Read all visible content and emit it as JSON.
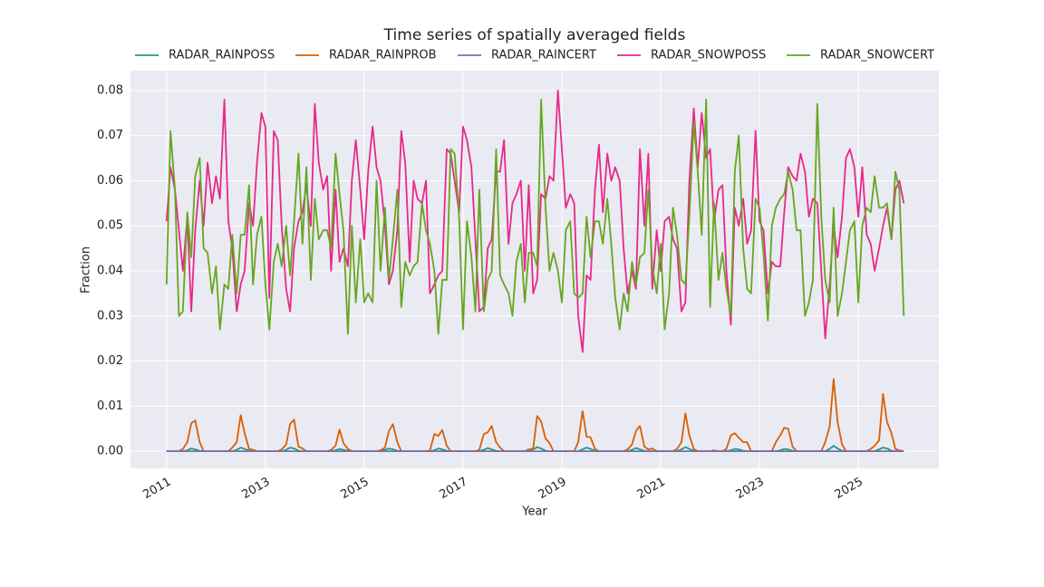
{
  "chart_data": {
    "type": "line",
    "title": "Time series of spatially averaged fields",
    "xlabel": "Year",
    "ylabel": "Fraction",
    "xlim": [
      2010.27,
      2026.63
    ],
    "ylim": [
      -0.0038,
      0.0844
    ],
    "xticks": [
      2011,
      2013,
      2015,
      2017,
      2019,
      2021,
      2023,
      2025
    ],
    "yticks": [
      {
        "value": 0,
        "label": "0.00"
      },
      {
        "value": 0.01,
        "label": "0.01"
      },
      {
        "value": 0.02,
        "label": "0.02"
      },
      {
        "value": 0.03,
        "label": "0.03"
      },
      {
        "value": 0.04,
        "label": "0.04"
      },
      {
        "value": 0.05,
        "label": "0.05"
      },
      {
        "value": 0.06,
        "label": "0.06"
      },
      {
        "value": 0.07,
        "label": "0.07"
      },
      {
        "value": 0.08,
        "label": "0.08"
      }
    ],
    "grid": true,
    "legend": "top",
    "x": [
      2011,
      2011.08,
      2011.17,
      2011.25,
      2011.33,
      2011.42,
      2011.5,
      2011.58,
      2011.67,
      2011.75,
      2011.83,
      2011.92,
      2012,
      2012.08,
      2012.17,
      2012.25,
      2012.33,
      2012.42,
      2012.5,
      2012.58,
      2012.67,
      2012.75,
      2012.83,
      2012.92,
      2013,
      2013.08,
      2013.17,
      2013.25,
      2013.33,
      2013.42,
      2013.5,
      2013.58,
      2013.67,
      2013.75,
      2013.83,
      2013.92,
      2014,
      2014.08,
      2014.17,
      2014.25,
      2014.33,
      2014.42,
      2014.5,
      2014.58,
      2014.67,
      2014.75,
      2014.83,
      2014.92,
      2015,
      2015.08,
      2015.17,
      2015.25,
      2015.33,
      2015.42,
      2015.5,
      2015.58,
      2015.67,
      2015.75,
      2015.83,
      2015.92,
      2016,
      2016.08,
      2016.17,
      2016.25,
      2016.33,
      2016.42,
      2016.5,
      2016.58,
      2016.67,
      2016.75,
      2016.83,
      2016.92,
      2017,
      2017.08,
      2017.17,
      2017.25,
      2017.33,
      2017.42,
      2017.5,
      2017.58,
      2017.67,
      2017.75,
      2017.83,
      2017.92,
      2018,
      2018.08,
      2018.17,
      2018.25,
      2018.33,
      2018.42,
      2018.5,
      2018.58,
      2018.67,
      2018.75,
      2018.83,
      2018.92,
      2019,
      2019.08,
      2019.17,
      2019.25,
      2019.33,
      2019.42,
      2019.5,
      2019.58,
      2019.67,
      2019.75,
      2019.83,
      2019.92,
      2020,
      2020.08,
      2020.17,
      2020.25,
      2020.33,
      2020.42,
      2020.5,
      2020.58,
      2020.67,
      2020.75,
      2020.83,
      2020.92,
      2021,
      2021.08,
      2021.17,
      2021.25,
      2021.33,
      2021.42,
      2021.5,
      2021.58,
      2021.67,
      2021.75,
      2021.83,
      2021.92,
      2022,
      2022.08,
      2022.17,
      2022.25,
      2022.33,
      2022.42,
      2022.5,
      2022.58,
      2022.67,
      2022.75,
      2022.83,
      2022.92,
      2023,
      2023.08,
      2023.17,
      2023.25,
      2023.33,
      2023.42,
      2023.5,
      2023.58,
      2023.67,
      2023.75,
      2023.83,
      2023.92,
      2024,
      2024.08,
      2024.17,
      2024.25,
      2024.33,
      2024.42,
      2024.5,
      2024.58,
      2024.67,
      2024.75,
      2024.83,
      2024.92,
      2025,
      2025.08,
      2025.17,
      2025.25,
      2025.33,
      2025.42,
      2025.5,
      2025.58,
      2025.67,
      2025.75,
      2025.83,
      2025.92
    ],
    "series": [
      {
        "name": "RADAR_RAINPOSS",
        "color": "#1b9e77",
        "values": [
          0,
          0,
          0,
          0,
          0,
          0.0002,
          0.0006,
          0.0004,
          0.0001,
          0,
          0,
          0,
          0,
          0,
          0,
          0,
          0,
          0.0003,
          0.0008,
          0.0005,
          0.0001,
          0,
          0,
          0,
          0,
          0,
          0,
          0,
          0,
          0.0003,
          0.0008,
          0.0006,
          0.0001,
          0,
          0,
          0,
          0,
          0,
          0,
          0,
          0,
          0.0002,
          0.0005,
          0.0003,
          0.0001,
          0,
          0,
          0,
          0,
          0,
          0,
          0,
          0,
          0.0003,
          0.0006,
          0.0004,
          0.0001,
          0,
          0,
          0,
          0,
          0,
          0,
          0,
          0,
          0.0002,
          0.0006,
          0.0004,
          0.0001,
          0,
          0,
          0,
          0,
          0,
          0,
          0,
          0,
          0.0003,
          0.0007,
          0.0004,
          0.0001,
          0,
          0,
          0,
          0,
          0,
          0,
          0,
          0,
          0.0004,
          0.0009,
          0.0006,
          0.0001,
          0,
          0,
          0,
          0,
          0,
          0,
          0,
          0,
          0.0004,
          0.0008,
          0.0005,
          0.0001,
          0,
          0,
          0,
          0,
          0,
          0,
          0,
          0,
          0.0003,
          0.0007,
          0.0004,
          0.0001,
          0,
          0,
          0,
          0,
          0,
          0,
          0,
          0,
          0.0004,
          0.0009,
          0.0005,
          0.0001,
          0,
          0,
          0,
          0,
          0,
          0,
          0,
          0,
          0.0002,
          0.0005,
          0.0004,
          0.0001,
          0,
          0,
          0,
          0,
          0,
          0,
          0,
          0,
          0.0002,
          0.0005,
          0.0004,
          0.0001,
          0,
          0,
          0,
          0,
          0,
          0,
          0,
          0,
          0.0005,
          0.0012,
          0.0006,
          0.0001,
          0,
          0,
          0,
          0,
          0,
          0,
          0,
          0,
          0.0004,
          0.0008,
          0.0006,
          0.0001,
          0,
          0,
          0
        ]
      },
      {
        "name": "RADAR_RAINPROB",
        "color": "#d95f02",
        "values": [
          0,
          0,
          0,
          0,
          0.0005,
          0.002,
          0.0062,
          0.0068,
          0.002,
          0,
          0,
          0,
          0,
          0,
          0,
          0,
          0.0008,
          0.002,
          0.008,
          0.004,
          0.0005,
          0.0003,
          0,
          0,
          0,
          0,
          0,
          0,
          0.0004,
          0.0015,
          0.006,
          0.007,
          0.001,
          0.0006,
          0,
          0,
          0,
          0,
          0,
          0,
          0.0003,
          0.0012,
          0.0048,
          0.0018,
          0.0005,
          0,
          0,
          0,
          0,
          0,
          0,
          0,
          0.0002,
          0.0008,
          0.0045,
          0.006,
          0.002,
          0,
          0,
          0,
          0,
          0,
          0,
          0,
          0.0002,
          0.0038,
          0.0034,
          0.0047,
          0.0012,
          0,
          0,
          0,
          0,
          0,
          0,
          0,
          0.0003,
          0.0038,
          0.0042,
          0.0056,
          0.002,
          0.0008,
          0,
          0,
          0,
          0,
          0,
          0,
          0.0004,
          0.0006,
          0.0078,
          0.0066,
          0.0028,
          0.0018,
          0,
          0,
          0,
          0,
          0,
          0,
          0.002,
          0.0089,
          0.0032,
          0.0031,
          0.0005,
          0,
          0,
          0,
          0,
          0,
          0,
          0,
          0.0004,
          0.0015,
          0.0045,
          0.0056,
          0.001,
          0.0004,
          0.0006,
          0,
          0,
          0,
          0,
          0,
          0.0005,
          0.002,
          0.0084,
          0.0035,
          0.0005,
          0,
          0,
          0,
          0,
          0.0002,
          0,
          0,
          0.0005,
          0.0035,
          0.004,
          0.003,
          0.002,
          0.002,
          0,
          0,
          0,
          0,
          0,
          0,
          0.002,
          0.0035,
          0.0052,
          0.005,
          0.001,
          0,
          0,
          0,
          0,
          0,
          0,
          0,
          0.002,
          0.0055,
          0.016,
          0.0065,
          0.0015,
          0,
          0,
          0,
          0,
          0,
          0,
          0.0005,
          0.0012,
          0.0024,
          0.0127,
          0.0065,
          0.004,
          0.0005,
          0.0002,
          0
        ]
      },
      {
        "name": "RADAR_RAINCERT",
        "color": "#7570b3",
        "values": [
          0,
          0,
          0,
          0,
          0,
          0,
          0,
          0,
          0,
          0,
          0,
          0,
          0,
          0,
          0,
          0,
          0,
          0,
          0,
          0,
          0,
          0,
          0,
          0,
          0,
          0,
          0,
          0,
          0,
          0,
          0,
          0,
          0,
          0,
          0,
          0,
          0,
          0,
          0,
          0,
          0,
          0,
          0,
          0,
          0,
          0,
          0,
          0,
          0,
          0,
          0,
          0,
          0,
          0,
          0,
          0,
          0,
          0,
          0,
          0,
          0,
          0,
          0,
          0,
          0,
          0,
          0,
          0,
          0,
          0,
          0,
          0,
          0,
          0,
          0,
          0,
          0,
          0,
          0,
          0,
          0,
          0,
          0,
          0,
          0,
          0,
          0,
          0,
          0,
          0,
          0,
          0,
          0,
          0,
          0,
          0,
          0,
          0,
          0,
          0,
          0,
          0,
          0,
          0,
          0,
          0,
          0,
          0,
          0,
          0,
          0,
          0,
          0,
          0,
          0,
          0,
          0,
          0,
          0,
          0,
          0,
          0,
          0,
          0,
          0,
          0,
          0,
          0,
          0,
          0,
          0,
          0,
          0,
          0,
          0,
          0,
          0,
          0,
          0,
          0,
          0,
          0,
          0,
          0,
          0,
          0,
          0,
          0,
          0,
          0,
          0,
          0,
          0,
          0,
          0,
          0,
          0,
          0,
          0,
          0,
          0,
          0,
          0,
          0,
          0,
          0,
          0,
          0,
          0,
          0,
          0,
          0,
          0,
          0,
          0,
          0,
          0,
          0,
          0,
          0
        ]
      },
      {
        "name": "RADAR_SNOWPOSS",
        "color": "#e7298a",
        "values": [
          0.051,
          0.063,
          0.058,
          0.049,
          0.04,
          0.052,
          0.031,
          0.049,
          0.06,
          0.05,
          0.064,
          0.055,
          0.061,
          0.056,
          0.078,
          0.051,
          0.045,
          0.031,
          0.037,
          0.04,
          0.055,
          0.05,
          0.064,
          0.075,
          0.072,
          0.034,
          0.071,
          0.069,
          0.05,
          0.036,
          0.031,
          0.045,
          0.051,
          0.053,
          0.059,
          0.05,
          0.077,
          0.064,
          0.058,
          0.061,
          0.04,
          0.058,
          0.042,
          0.045,
          0.041,
          0.06,
          0.069,
          0.058,
          0.047,
          0.062,
          0.072,
          0.063,
          0.06,
          0.05,
          0.037,
          0.04,
          0.049,
          0.071,
          0.064,
          0.042,
          0.06,
          0.056,
          0.055,
          0.06,
          0.035,
          0.037,
          0.039,
          0.04,
          0.067,
          0.066,
          0.06,
          0.053,
          0.072,
          0.069,
          0.063,
          0.047,
          0.031,
          0.032,
          0.045,
          0.047,
          0.062,
          0.062,
          0.069,
          0.046,
          0.055,
          0.057,
          0.06,
          0.04,
          0.059,
          0.035,
          0.038,
          0.057,
          0.056,
          0.061,
          0.06,
          0.08,
          0.067,
          0.054,
          0.057,
          0.055,
          0.03,
          0.022,
          0.039,
          0.038,
          0.058,
          0.068,
          0.053,
          0.066,
          0.06,
          0.063,
          0.06,
          0.045,
          0.035,
          0.04,
          0.036,
          0.067,
          0.05,
          0.066,
          0.036,
          0.049,
          0.04,
          0.051,
          0.052,
          0.047,
          0.045,
          0.031,
          0.033,
          0.06,
          0.076,
          0.063,
          0.075,
          0.065,
          0.067,
          0.051,
          0.058,
          0.059,
          0.04,
          0.028,
          0.054,
          0.05,
          0.056,
          0.046,
          0.049,
          0.071,
          0.051,
          0.049,
          0.035,
          0.042,
          0.041,
          0.041,
          0.053,
          0.063,
          0.061,
          0.06,
          0.066,
          0.062,
          0.052,
          0.056,
          0.055,
          0.04,
          0.025,
          0.037,
          0.05,
          0.043,
          0.052,
          0.065,
          0.067,
          0.063,
          0.052,
          0.063,
          0.048,
          0.046,
          0.04,
          0.045,
          0.05,
          0.054,
          0.047,
          0.058,
          0.06,
          0.055
        ]
      },
      {
        "name": "RADAR_SNOWCERT",
        "color": "#66a61e",
        "values": [
          0.037,
          0.071,
          0.058,
          0.03,
          0.031,
          0.053,
          0.043,
          0.061,
          0.065,
          0.045,
          0.044,
          0.035,
          0.041,
          0.027,
          0.037,
          0.036,
          0.048,
          0.035,
          0.048,
          0.048,
          0.059,
          0.037,
          0.048,
          0.052,
          0.037,
          0.027,
          0.042,
          0.046,
          0.041,
          0.05,
          0.039,
          0.051,
          0.066,
          0.046,
          0.063,
          0.038,
          0.056,
          0.047,
          0.049,
          0.049,
          0.045,
          0.066,
          0.057,
          0.049,
          0.026,
          0.05,
          0.033,
          0.047,
          0.033,
          0.035,
          0.033,
          0.06,
          0.04,
          0.054,
          0.038,
          0.047,
          0.058,
          0.032,
          0.042,
          0.039,
          0.041,
          0.042,
          0.055,
          0.049,
          0.046,
          0.04,
          0.026,
          0.038,
          0.038,
          0.067,
          0.066,
          0.052,
          0.027,
          0.051,
          0.043,
          0.031,
          0.058,
          0.031,
          0.038,
          0.04,
          0.067,
          0.039,
          0.037,
          0.035,
          0.03,
          0.042,
          0.046,
          0.033,
          0.044,
          0.044,
          0.041,
          0.078,
          0.054,
          0.04,
          0.044,
          0.04,
          0.033,
          0.049,
          0.051,
          0.035,
          0.034,
          0.035,
          0.052,
          0.043,
          0.051,
          0.051,
          0.046,
          0.056,
          0.046,
          0.034,
          0.027,
          0.035,
          0.031,
          0.042,
          0.037,
          0.043,
          0.044,
          0.058,
          0.041,
          0.035,
          0.046,
          0.027,
          0.035,
          0.054,
          0.048,
          0.038,
          0.037,
          0.052,
          0.073,
          0.062,
          0.048,
          0.078,
          0.032,
          0.055,
          0.038,
          0.044,
          0.036,
          0.03,
          0.062,
          0.07,
          0.045,
          0.036,
          0.035,
          0.056,
          0.054,
          0.044,
          0.029,
          0.05,
          0.054,
          0.056,
          0.057,
          0.062,
          0.058,
          0.049,
          0.049,
          0.03,
          0.033,
          0.038,
          0.077,
          0.052,
          0.038,
          0.033,
          0.054,
          0.03,
          0.035,
          0.042,
          0.049,
          0.051,
          0.033,
          0.05,
          0.054,
          0.053,
          0.061,
          0.054,
          0.054,
          0.055,
          0.047,
          0.062,
          0.058,
          0.03
        ]
      }
    ]
  }
}
